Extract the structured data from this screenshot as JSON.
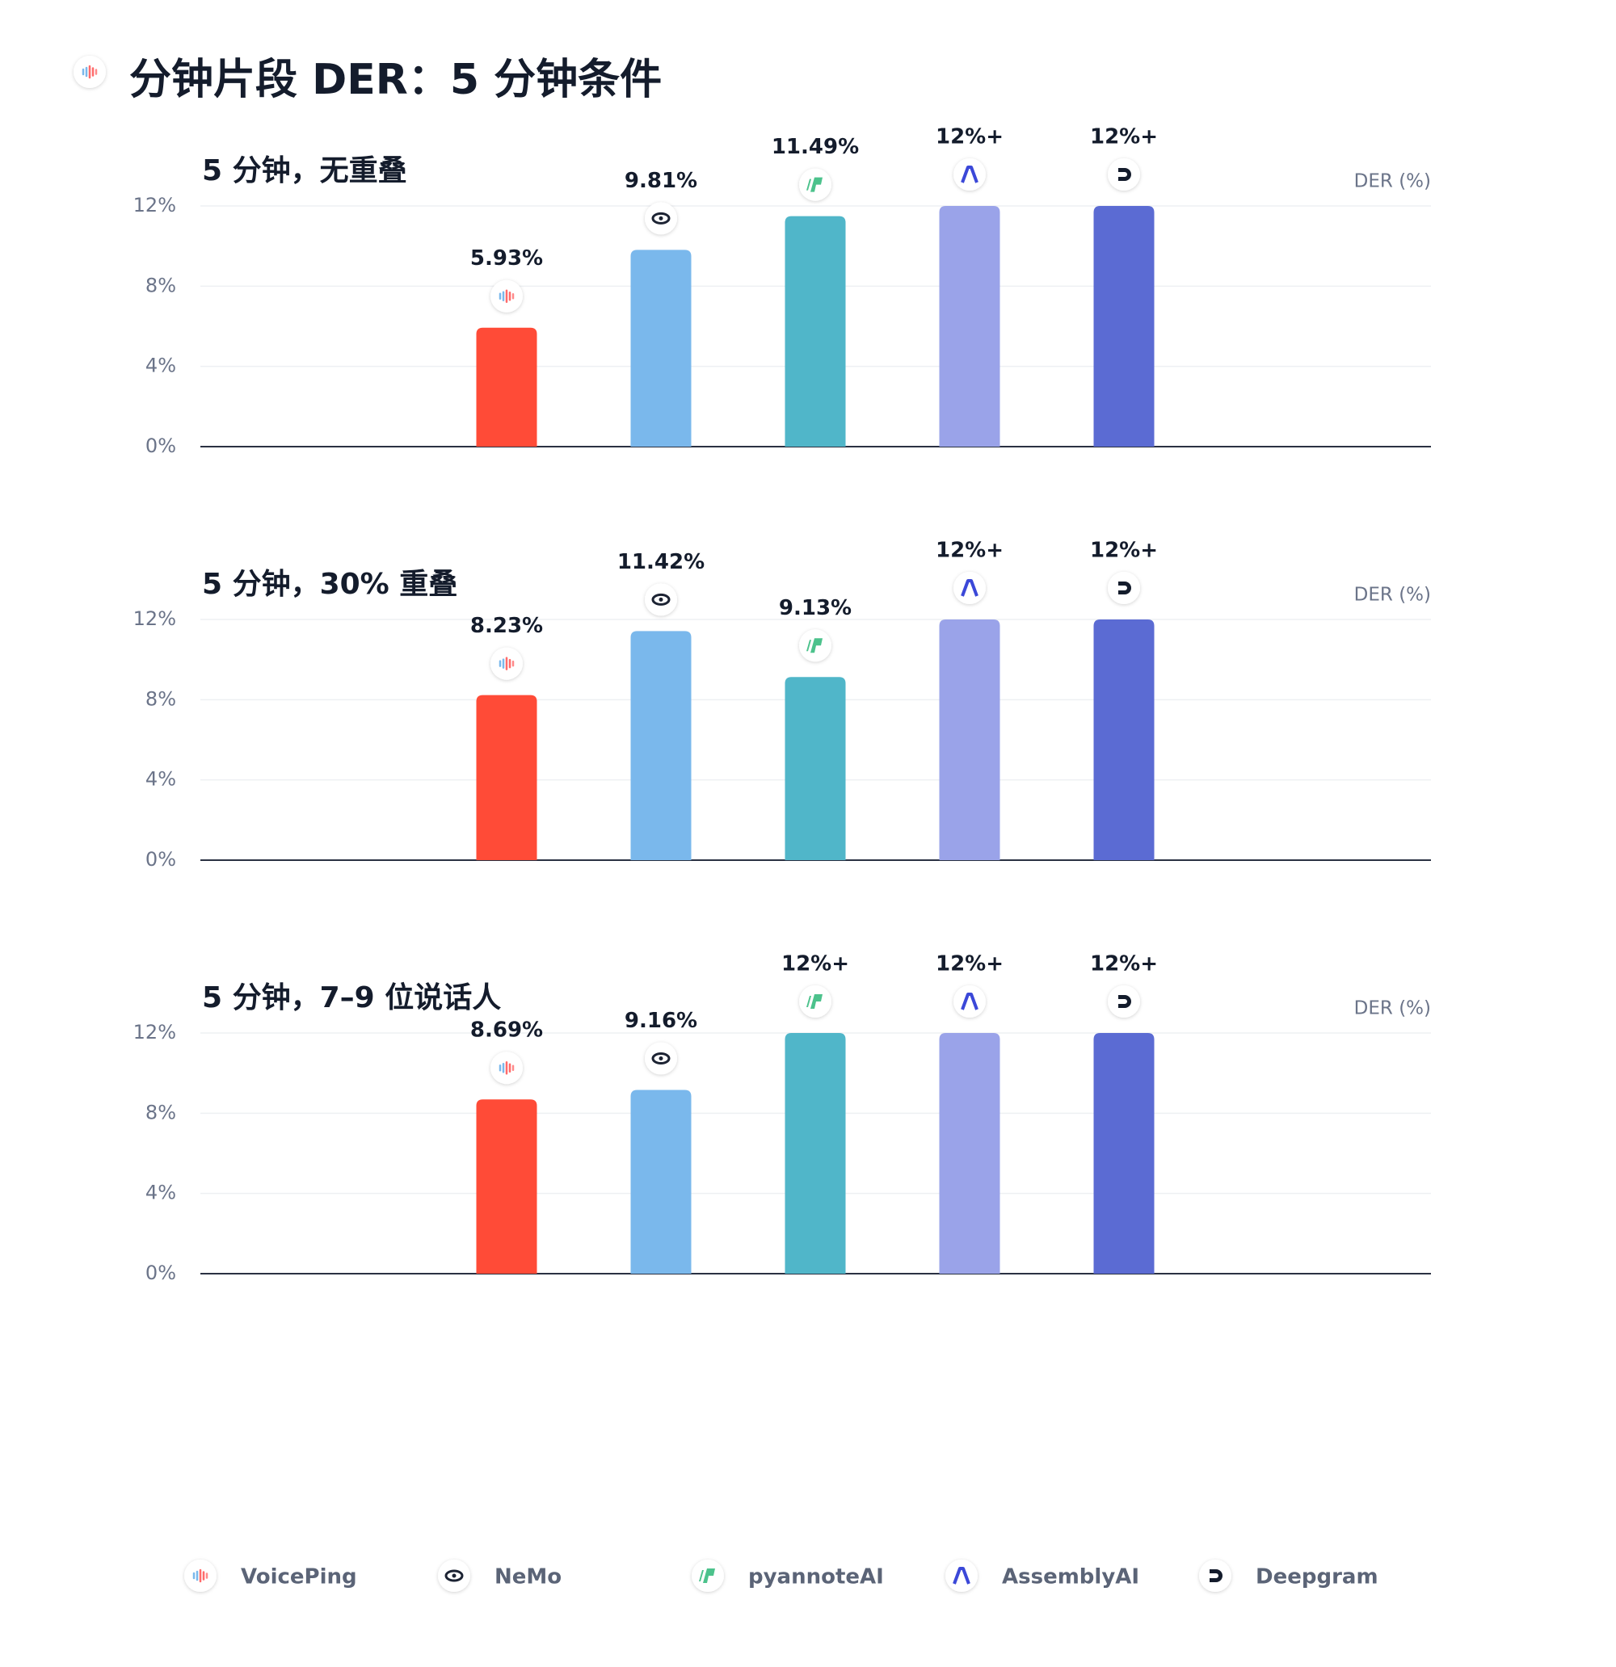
{
  "title": "分钟片段 DER：5 分钟条件",
  "legend": {
    "names": [
      "VoicePing",
      "NeMo",
      "pyannoteAI",
      "AssemblyAI",
      "Deepgram"
    ],
    "colors": [
      "#ff4b37",
      "#7ab8ec",
      "#50b6c9",
      "#9aa3e9",
      "#5b6bd3"
    ]
  },
  "chart_data": [
    {
      "type": "bar",
      "title": "5 分钟，无重叠",
      "y_label": "DER (%)",
      "values": [
        5.93,
        9.81,
        11.49,
        12,
        12
      ],
      "value_labels": [
        "5.93%",
        "9.81%",
        "11.49%",
        "12%+",
        "12%+"
      ],
      "ylim": [
        0,
        12
      ],
      "yticks": [
        {
          "value": 0,
          "label": "0%"
        },
        {
          "value": 4,
          "label": "4%"
        },
        {
          "value": 8,
          "label": "8%"
        },
        {
          "value": 12,
          "label": "12%"
        }
      ],
      "grid": true
    },
    {
      "type": "bar",
      "title": "5 分钟，30% 重叠",
      "y_label": "DER (%)",
      "values": [
        8.23,
        11.42,
        9.13,
        12,
        12
      ],
      "value_labels": [
        "8.23%",
        "11.42%",
        "9.13%",
        "12%+",
        "12%+"
      ],
      "ylim": [
        0,
        12
      ],
      "yticks": [
        {
          "value": 0,
          "label": "0%"
        },
        {
          "value": 4,
          "label": "4%"
        },
        {
          "value": 8,
          "label": "8%"
        },
        {
          "value": 12,
          "label": "12%"
        }
      ],
      "grid": true
    },
    {
      "type": "bar",
      "title": "5 分钟，7–9 位说话人",
      "y_label": "DER (%)",
      "values": [
        8.69,
        9.16,
        12,
        12,
        12
      ],
      "value_labels": [
        "8.69%",
        "9.16%",
        "12%+",
        "12%+",
        "12%+"
      ],
      "ylim": [
        0,
        12
      ],
      "yticks": [
        {
          "value": 0,
          "label": "0%"
        },
        {
          "value": 4,
          "label": "4%"
        },
        {
          "value": 8,
          "label": "8%"
        },
        {
          "value": 12,
          "label": "12%"
        }
      ],
      "grid": true
    }
  ]
}
